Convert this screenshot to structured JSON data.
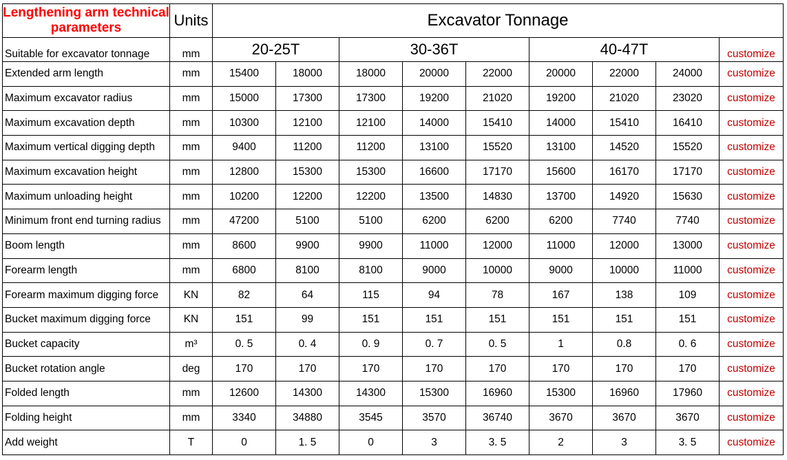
{
  "header": {
    "title": "Lengthening arm technical parameters",
    "units_label": "Units",
    "group_title": "Excavator Tonnage"
  },
  "subheader": {
    "label": "Suitable for excavator tonnage",
    "unit": "mm",
    "groups": [
      "20-25T",
      "30-36T",
      "40-47T"
    ],
    "action": "customize"
  },
  "rows": [
    {
      "label": "Extended arm length",
      "unit": "mm",
      "values": [
        "15400",
        "18000",
        "18000",
        "20000",
        "22000",
        "20000",
        "22000",
        "24000"
      ],
      "action": "customize"
    },
    {
      "label": "Maximum excavator radius",
      "unit": "mm",
      "values": [
        "15000",
        "17300",
        "17300",
        "19200",
        "21020",
        "19200",
        "21020",
        "23020"
      ],
      "action": "customize"
    },
    {
      "label": "Maximum excavation depth",
      "unit": "mm",
      "values": [
        "10300",
        "12100",
        "12100",
        "14000",
        "15410",
        "14000",
        "15410",
        "16410"
      ],
      "action": "customize"
    },
    {
      "label": "Maximum vertical digging depth",
      "unit": "mm",
      "values": [
        "9400",
        "11200",
        "11200",
        "13100",
        "15520",
        "13100",
        "14520",
        "15520"
      ],
      "action": "customize"
    },
    {
      "label": "Maximum excavation height",
      "unit": "mm",
      "values": [
        "12800",
        "15300",
        "15300",
        "16600",
        "17170",
        "15600",
        "16170",
        "17170"
      ],
      "action": "customize"
    },
    {
      "label": "Maximum unloading height",
      "unit": "mm",
      "values": [
        "10200",
        "12200",
        "12200",
        "13500",
        "14830",
        "13700",
        "14920",
        "15630"
      ],
      "action": "customize"
    },
    {
      "label": "Minimum front end turning radius",
      "unit": "mm",
      "values": [
        "47200",
        "5100",
        "5100",
        "6200",
        "6200",
        "6200",
        "7740",
        "7740"
      ],
      "action": "customize"
    },
    {
      "label": "Boom length",
      "unit": "mm",
      "values": [
        "8600",
        "9900",
        "9900",
        "11000",
        "12000",
        "11000",
        "12000",
        "13000"
      ],
      "action": "customize"
    },
    {
      "label": "Forearm length",
      "unit": "mm",
      "values": [
        "6800",
        "8100",
        "8100",
        "9000",
        "10000",
        "9000",
        "10000",
        "11000"
      ],
      "action": "customize"
    },
    {
      "label": "Forearm maximum digging force",
      "unit": "KN",
      "values": [
        "82",
        "64",
        "115",
        "94",
        "78",
        "167",
        "138",
        "109"
      ],
      "action": "customize"
    },
    {
      "label": "Bucket maximum digging force",
      "unit": "KN",
      "values": [
        "151",
        "99",
        "151",
        "151",
        "151",
        "151",
        "151",
        "151"
      ],
      "action": "customize"
    },
    {
      "label": "Bucket capacity",
      "unit": "m³",
      "values": [
        "0. 5",
        "0. 4",
        "0. 9",
        "0. 7",
        "0. 5",
        "1",
        "0.8",
        "0. 6"
      ],
      "action": "customize"
    },
    {
      "label": "Bucket rotation angle",
      "unit": "deg",
      "values": [
        "170",
        "170",
        "170",
        "170",
        "170",
        "170",
        "170",
        "170"
      ],
      "action": "customize"
    },
    {
      "label": "Folded length",
      "unit": "mm",
      "values": [
        "12600",
        "14300",
        "14300",
        "15300",
        "16960",
        "15300",
        "16960",
        "17960"
      ],
      "action": "customize"
    },
    {
      "label": "Folding height",
      "unit": "mm",
      "values": [
        "3340",
        "34880",
        "3545",
        "3570",
        "36740",
        "3670",
        "3670",
        "3670"
      ],
      "action": "customize"
    },
    {
      "label": "Add weight",
      "unit": "T",
      "values": [
        "0",
        "1. 5",
        "0",
        "3",
        "3. 5",
        "2",
        "3",
        "3. 5"
      ],
      "action": "customize"
    }
  ]
}
